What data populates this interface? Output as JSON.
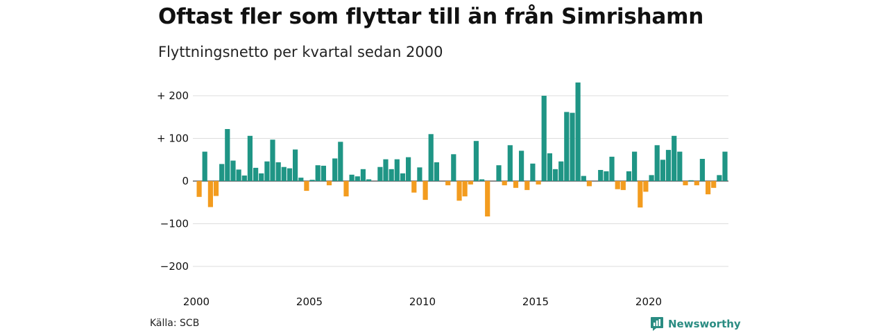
{
  "title": "Oftast fler som flyttar till än från Simrishamn",
  "subtitle": "Flyttningsnetto per kvartal sedan 2000",
  "source": "Källa: SCB",
  "brand": {
    "name": "Newsworthy",
    "icon": "newsworthy-logo-icon"
  },
  "colors": {
    "positive": "#1f9585",
    "negative": "#f39c1f",
    "grid": "#dddddd"
  },
  "chart_data": {
    "type": "bar",
    "x_start": "2000 Q1",
    "xlim": [
      2000,
      2023.75
    ],
    "ylim": [
      -200,
      230
    ],
    "ytick_values": [
      200,
      100,
      0,
      -100,
      -200
    ],
    "ytick_labels": [
      "+ 200",
      "+ 100",
      "0",
      "−100",
      "−200"
    ],
    "xtick_values": [
      2000,
      2005,
      2010,
      2015,
      2020
    ],
    "xtick_labels": [
      "2000",
      "2005",
      "2010",
      "2015",
      "2020"
    ],
    "grid": true,
    "values": [
      -37,
      69,
      -61,
      -35,
      40,
      122,
      48,
      27,
      13,
      106,
      31,
      18,
      46,
      97,
      44,
      33,
      30,
      74,
      8,
      -23,
      3,
      37,
      36,
      -10,
      53,
      92,
      -36,
      15,
      11,
      28,
      4,
      0,
      33,
      51,
      28,
      51,
      18,
      56,
      -27,
      32,
      -44,
      110,
      44,
      0,
      -10,
      63,
      -46,
      -36,
      -8,
      94,
      4,
      -83,
      0,
      37,
      -10,
      84,
      -16,
      71,
      -21,
      41,
      -8,
      200,
      65,
      28,
      46,
      162,
      160,
      231,
      12,
      -12,
      0,
      26,
      23,
      57,
      -19,
      -21,
      23,
      69,
      -62,
      -25,
      14,
      84,
      50,
      73,
      106,
      69,
      -10,
      2,
      -10,
      52,
      -31,
      -16,
      14,
      69
    ]
  }
}
